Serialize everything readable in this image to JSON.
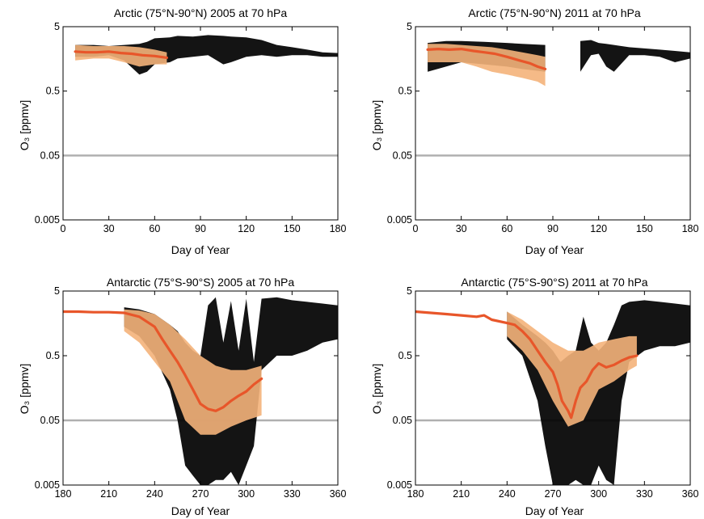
{
  "chart_data": [
    {
      "type": "line",
      "title": "Arctic (75°N-90°N) 2005 at 70 hPa",
      "xlabel": "Day of Year",
      "ylabel": "O₃ [ppmv]",
      "xlim": [
        0,
        180
      ],
      "ylim": [
        0.005,
        5
      ],
      "yscale": "log",
      "xticks": [
        0,
        30,
        60,
        90,
        120,
        150,
        180
      ],
      "yticks": [
        0.005,
        0.05,
        0.5,
        5
      ],
      "ytick_labels": [
        "0.005",
        "0.05",
        "0.5",
        "5"
      ],
      "reference_line": 0.05,
      "series": [
        {
          "color": "#000000",
          "range_y": [
            [
              8,
              1.7,
              2.6
            ],
            [
              20,
              1.7,
              2.6
            ],
            [
              30,
              1.8,
              2.5
            ],
            [
              40,
              1.5,
              2.6
            ],
            [
              50,
              0.9,
              2.7
            ],
            [
              55,
              1.0,
              2.9
            ],
            [
              60,
              1.3,
              3.3
            ],
            [
              70,
              1.4,
              3.4
            ],
            [
              75,
              1.6,
              3.6
            ],
            [
              85,
              1.7,
              3.5
            ],
            [
              95,
              1.8,
              3.7
            ],
            [
              105,
              1.3,
              3.6
            ],
            [
              110,
              1.4,
              3.5
            ],
            [
              120,
              1.7,
              3.4
            ],
            [
              130,
              1.8,
              3.1
            ],
            [
              140,
              1.7,
              2.6
            ],
            [
              150,
              1.8,
              2.4
            ],
            [
              160,
              1.8,
              2.2
            ],
            [
              170,
              1.7,
              2.0
            ],
            [
              180,
              1.7,
              1.95
            ]
          ]
        },
        {
          "color": "#f4b27a",
          "range_y": [
            [
              8,
              1.5,
              2.6
            ],
            [
              20,
              1.6,
              2.5
            ],
            [
              30,
              1.6,
              2.5
            ],
            [
              40,
              1.4,
              2.5
            ],
            [
              50,
              1.2,
              2.4
            ],
            [
              60,
              1.3,
              2.2
            ],
            [
              68,
              1.3,
              2.0
            ]
          ]
        },
        {
          "color": "#e8562a",
          "x": [
            8,
            15,
            22,
            30,
            38,
            45,
            52,
            60,
            68
          ],
          "y": [
            2.05,
            2.0,
            2.0,
            2.05,
            1.95,
            1.9,
            1.8,
            1.75,
            1.65
          ]
        }
      ]
    },
    {
      "type": "line",
      "title": "Arctic (75°N-90°N) 2011 at 70 hPa",
      "xlabel": "Day of Year",
      "ylabel": "O₃ [ppmv]",
      "xlim": [
        0,
        180
      ],
      "ylim": [
        0.005,
        5
      ],
      "yscale": "log",
      "xticks": [
        0,
        30,
        60,
        90,
        120,
        150,
        180
      ],
      "yticks": [
        0.005,
        0.05,
        0.5,
        5
      ],
      "ytick_labels": [
        "0.005",
        "0.05",
        "0.5",
        "5"
      ],
      "reference_line": 0.05,
      "series": [
        {
          "color": "#000000",
          "range_y": [
            [
              8,
              1.0,
              2.8
            ],
            [
              20,
              1.2,
              3.0
            ],
            [
              30,
              1.4,
              3.0
            ],
            [
              45,
              1.3,
              2.9
            ],
            [
              60,
              1.2,
              2.8
            ],
            [
              70,
              1.1,
              2.7
            ],
            [
              85,
              1.0,
              2.6
            ],
            [
              108,
              1.0,
              3.0
            ],
            [
              115,
              1.8,
              3.1
            ],
            [
              120,
              1.9,
              2.8
            ],
            [
              125,
              1.2,
              2.7
            ],
            [
              130,
              1.0,
              2.6
            ],
            [
              140,
              1.8,
              2.4
            ],
            [
              150,
              1.8,
              2.3
            ],
            [
              160,
              1.7,
              2.2
            ],
            [
              170,
              1.4,
              2.1
            ],
            [
              180,
              1.6,
              2.0
            ]
          ]
        },
        {
          "color": "#f4b27a",
          "range_y": [
            [
              8,
              1.4,
              2.7
            ],
            [
              20,
              1.4,
              2.7
            ],
            [
              30,
              1.4,
              2.6
            ],
            [
              40,
              1.2,
              2.5
            ],
            [
              50,
              1.0,
              2.4
            ],
            [
              60,
              0.9,
              2.2
            ],
            [
              70,
              0.8,
              2.0
            ],
            [
              80,
              0.7,
              1.8
            ],
            [
              85,
              0.6,
              1.7
            ]
          ]
        },
        {
          "color": "#e8562a",
          "x": [
            8,
            15,
            22,
            30,
            38,
            45,
            52,
            60,
            68,
            75,
            80,
            85
          ],
          "y": [
            2.2,
            2.25,
            2.2,
            2.25,
            2.1,
            2.0,
            1.9,
            1.7,
            1.5,
            1.35,
            1.2,
            1.1
          ]
        }
      ]
    },
    {
      "type": "line",
      "title": "Antarctic (75°S-90°S)  2005 at 70 hPa",
      "xlabel": "Day of Year",
      "ylabel": "O₃ [ppmv]",
      "xlim": [
        180,
        360
      ],
      "ylim": [
        0.005,
        5
      ],
      "yscale": "log",
      "xticks": [
        180,
        210,
        240,
        270,
        300,
        330,
        360
      ],
      "yticks": [
        0.005,
        0.05,
        0.5,
        5
      ],
      "ytick_labels": [
        "0.005",
        "0.05",
        "0.5",
        "5"
      ],
      "reference_line": 0.05,
      "series": [
        {
          "color": "#000000",
          "range_y": [
            [
              180,
              1.8,
              3.0
            ],
            [
              200,
              1.8,
              3.0
            ],
            [
              220,
              1.4,
              2.8
            ],
            [
              230,
              1.0,
              2.6
            ],
            [
              240,
              0.5,
              2.2
            ],
            [
              250,
              0.15,
              1.5
            ],
            [
              255,
              0.05,
              1.2
            ],
            [
              260,
              0.01,
              0.8
            ],
            [
              265,
              0.007,
              0.6
            ],
            [
              270,
              0.005,
              0.5
            ],
            [
              275,
              0.005,
              3.0
            ],
            [
              280,
              0.006,
              4.0
            ],
            [
              285,
              0.006,
              0.8
            ],
            [
              290,
              0.008,
              3.5
            ],
            [
              295,
              0.005,
              0.6
            ],
            [
              300,
              0.01,
              3.8
            ],
            [
              305,
              0.02,
              0.4
            ],
            [
              310,
              0.3,
              3.8
            ],
            [
              320,
              0.5,
              4.0
            ],
            [
              330,
              0.5,
              3.6
            ],
            [
              340,
              0.6,
              3.4
            ],
            [
              350,
              0.8,
              3.2
            ],
            [
              360,
              0.9,
              3.0
            ]
          ]
        },
        {
          "color": "#f4b27a",
          "range_y": [
            [
              180,
              2.0,
              3.0
            ],
            [
              200,
              2.0,
              2.8
            ],
            [
              220,
              1.2,
              2.6
            ],
            [
              230,
              0.8,
              2.5
            ],
            [
              240,
              0.4,
              2.2
            ],
            [
              250,
              0.2,
              1.5
            ],
            [
              260,
              0.05,
              0.9
            ],
            [
              270,
              0.03,
              0.5
            ],
            [
              280,
              0.03,
              0.35
            ],
            [
              290,
              0.04,
              0.3
            ],
            [
              300,
              0.05,
              0.3
            ],
            [
              310,
              0.06,
              0.35
            ]
          ]
        },
        {
          "color": "#e8562a",
          "x": [
            180,
            190,
            200,
            210,
            220,
            230,
            240,
            245,
            250,
            255,
            260,
            265,
            270,
            275,
            280,
            285,
            290,
            295,
            300,
            305,
            310
          ],
          "y": [
            2.4,
            2.4,
            2.35,
            2.35,
            2.3,
            2.0,
            1.4,
            0.9,
            0.6,
            0.4,
            0.25,
            0.15,
            0.09,
            0.075,
            0.07,
            0.08,
            0.1,
            0.12,
            0.14,
            0.18,
            0.22
          ]
        }
      ]
    },
    {
      "type": "line",
      "title": "Antarctic (75°S-90°S) 2011 at 70 hPa",
      "xlabel": "Day of Year",
      "ylabel": "O₃ [ppmv]",
      "xlim": [
        180,
        360
      ],
      "ylim": [
        0.005,
        5
      ],
      "yscale": "log",
      "xticks": [
        180,
        210,
        240,
        270,
        300,
        330,
        360
      ],
      "yticks": [
        0.005,
        0.05,
        0.5,
        5
      ],
      "ytick_labels": [
        "0.005",
        "0.05",
        "0.5",
        "5"
      ],
      "reference_line": 0.05,
      "series": [
        {
          "color": "#000000",
          "range_y": [
            [
              180,
              1.9,
              3.2
            ],
            [
              200,
              1.8,
              3.0
            ],
            [
              220,
              1.4,
              2.8
            ],
            [
              240,
              0.9,
              2.4
            ],
            [
              250,
              0.5,
              1.5
            ],
            [
              260,
              0.1,
              1.0
            ],
            [
              265,
              0.02,
              0.8
            ],
            [
              270,
              0.005,
              0.6
            ],
            [
              275,
              0.005,
              0.4
            ],
            [
              280,
              0.005,
              0.5
            ],
            [
              285,
              0.006,
              0.6
            ],
            [
              290,
              0.005,
              2.0
            ],
            [
              295,
              0.005,
              0.8
            ],
            [
              300,
              0.01,
              0.6
            ],
            [
              305,
              0.006,
              0.8
            ],
            [
              310,
              0.005,
              1.5
            ],
            [
              315,
              0.1,
              3.0
            ],
            [
              320,
              0.4,
              3.4
            ],
            [
              330,
              0.6,
              3.6
            ],
            [
              340,
              0.7,
              3.4
            ],
            [
              350,
              0.7,
              3.2
            ],
            [
              360,
              0.8,
              3.0
            ]
          ]
        },
        {
          "color": "#f4b27a",
          "range_y": [
            [
              180,
              1.8,
              3.1
            ],
            [
              200,
              1.8,
              3.0
            ],
            [
              220,
              1.5,
              2.8
            ],
            [
              240,
              1.0,
              2.4
            ],
            [
              250,
              0.6,
              1.8
            ],
            [
              260,
              0.3,
              1.2
            ],
            [
              270,
              0.1,
              0.8
            ],
            [
              280,
              0.04,
              0.6
            ],
            [
              290,
              0.05,
              0.6
            ],
            [
              300,
              0.15,
              0.8
            ],
            [
              310,
              0.2,
              0.9
            ],
            [
              320,
              0.3,
              1.0
            ],
            [
              325,
              0.35,
              1.0
            ]
          ]
        },
        {
          "color": "#e8562a",
          "x": [
            180,
            190,
            200,
            210,
            220,
            225,
            230,
            240,
            245,
            250,
            255,
            260,
            265,
            270,
            273,
            276,
            280,
            282,
            285,
            288,
            292,
            296,
            300,
            305,
            310,
            315,
            320,
            325
          ],
          "y": [
            2.4,
            2.3,
            2.2,
            2.1,
            2.0,
            2.1,
            1.8,
            1.6,
            1.5,
            1.2,
            0.9,
            0.6,
            0.4,
            0.28,
            0.18,
            0.1,
            0.07,
            0.055,
            0.1,
            0.16,
            0.2,
            0.3,
            0.38,
            0.33,
            0.36,
            0.42,
            0.47,
            0.5
          ]
        }
      ]
    }
  ]
}
